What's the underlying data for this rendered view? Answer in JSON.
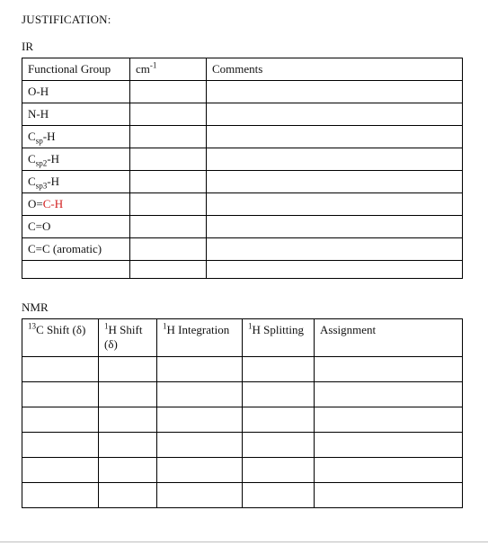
{
  "heading": "JUSTIFICATION:",
  "ir": {
    "label": "IR",
    "columns": [
      "Functional Group",
      "cm",
      "Comments"
    ],
    "cm_superscript": "-1",
    "rows": [
      {
        "group_html": "O-H",
        "cm": "",
        "comment": ""
      },
      {
        "group_html": "N-H",
        "cm": "",
        "comment": ""
      },
      {
        "group_html": "C<sub>sp</sub>-H",
        "cm": "",
        "comment": ""
      },
      {
        "group_html": "C<sub>sp2</sub>-H",
        "cm": "",
        "comment": ""
      },
      {
        "group_html": "C<sub>sp3</sub>-H",
        "cm": "",
        "comment": ""
      },
      {
        "group_html": "O=<span class=\"red\">C-H</span>",
        "cm": "",
        "comment": ""
      },
      {
        "group_html": "C=O",
        "cm": "",
        "comment": ""
      },
      {
        "group_html": "C=C (aromatic)",
        "cm": "",
        "comment": ""
      },
      {
        "group_html": "",
        "cm": "",
        "comment": ""
      }
    ]
  },
  "nmr": {
    "label": "NMR",
    "columns": {
      "c13": "C Shift (δ)",
      "c13_sup": "13",
      "h_shift": "H Shift (δ)",
      "h_sup": "1",
      "h_int": "H Integration",
      "h_split": "H Splitting",
      "assign": "Assignment"
    },
    "blank_rows": 6
  },
  "style": {
    "text_color": "#111111",
    "accent_red": "#d11b1b",
    "border_color": "#000000",
    "background": "#ffffff",
    "font_family": "Times New Roman"
  }
}
